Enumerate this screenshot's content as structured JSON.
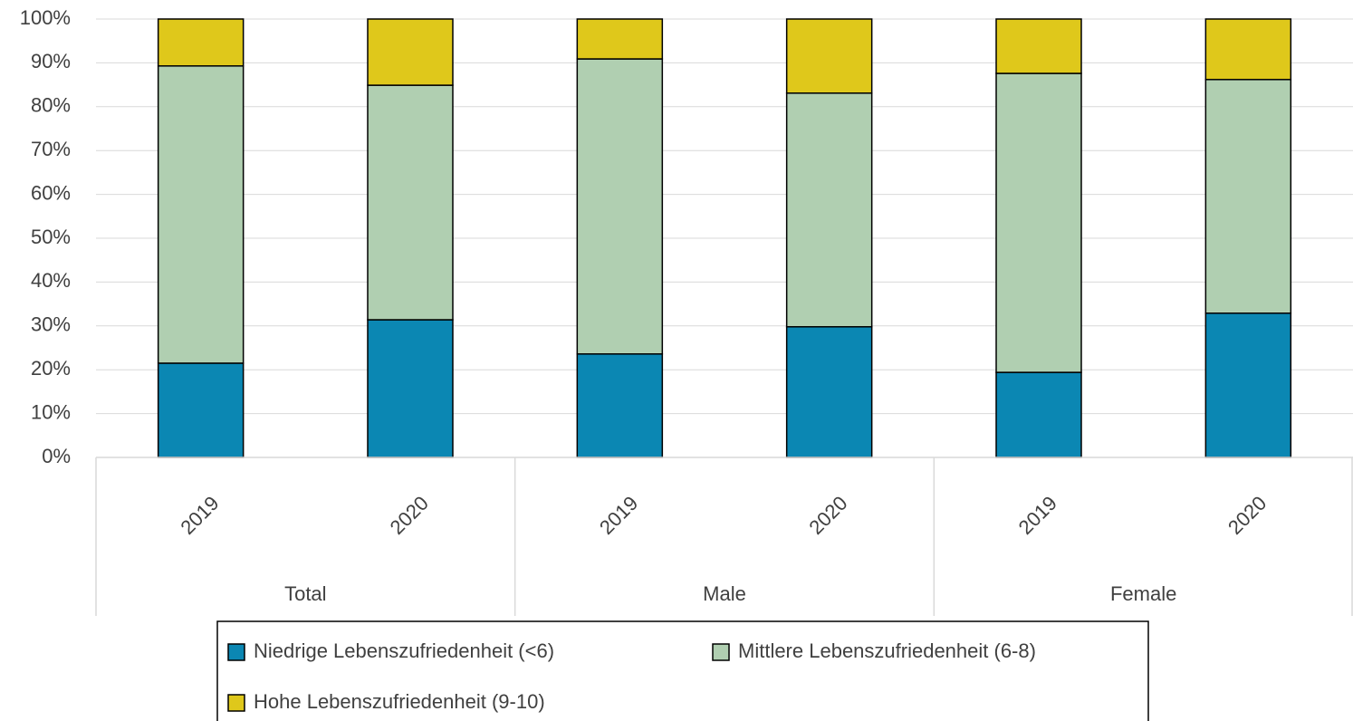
{
  "chart_data": {
    "type": "stacked_bar",
    "categories": [
      "2019",
      "2020",
      "2019",
      "2020",
      "2019",
      "2020"
    ],
    "group_labels": [
      "Total",
      "Male",
      "Female"
    ],
    "series": [
      {
        "name": "Niedrige Lebenszufriedenheit (<6)",
        "color": "#0b87b3",
        "values": [
          21.5,
          31.4,
          23.6,
          29.8,
          19.4,
          32.9
        ]
      },
      {
        "name": "Mittlere Lebenszufriedenheit (6-8)",
        "color": "#b0cfb1",
        "values": [
          67.8,
          53.5,
          67.3,
          53.3,
          68.2,
          53.3
        ]
      },
      {
        "name": "Hohe Lebenszufriedenheit (9-10)",
        "color": "#dfc81b",
        "values": [
          10.7,
          15.1,
          9.1,
          16.9,
          12.4,
          13.8
        ]
      }
    ],
    "ylim": [
      0,
      100
    ],
    "yticks": [
      {
        "value": 0,
        "label": "0%"
      },
      {
        "value": 10,
        "label": "10%"
      },
      {
        "value": 20,
        "label": "20%"
      },
      {
        "value": 30,
        "label": "30%"
      },
      {
        "value": 40,
        "label": "40%"
      },
      {
        "value": 50,
        "label": "50%"
      },
      {
        "value": 60,
        "label": "60%"
      },
      {
        "value": 70,
        "label": "70%"
      },
      {
        "value": 80,
        "label": "80%"
      },
      {
        "value": 90,
        "label": "90%"
      },
      {
        "value": 100,
        "label": "100%"
      }
    ],
    "grid": true
  }
}
